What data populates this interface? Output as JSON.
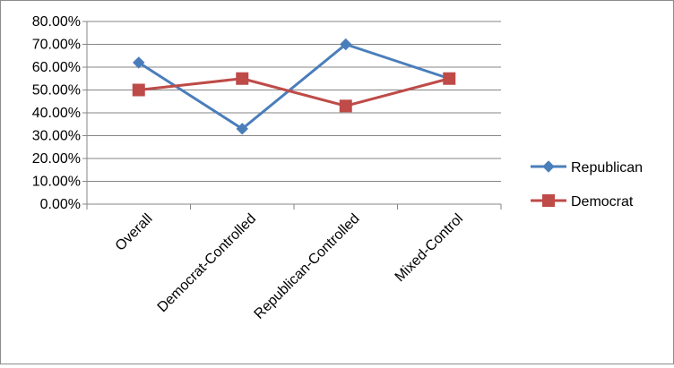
{
  "chart_data": {
    "type": "line",
    "categories": [
      "Overall",
      "Democrat-Controlled",
      "Republican-Controlled",
      "Mixed-Control"
    ],
    "series": [
      {
        "name": "Republican",
        "values": [
          0.62,
          0.33,
          0.7,
          0.55
        ],
        "color": "#4a7ebb",
        "marker": "diamond"
      },
      {
        "name": "Democrat",
        "values": [
          0.5,
          0.55,
          0.43,
          0.55
        ],
        "color": "#be4b48",
        "marker": "square"
      }
    ],
    "ylim": [
      0,
      0.8
    ],
    "yticks": [
      0,
      0.1,
      0.2,
      0.3,
      0.4,
      0.5,
      0.6,
      0.7,
      0.8
    ],
    "ytick_labels": [
      "0.00%",
      "10.00%",
      "20.00%",
      "30.00%",
      "40.00%",
      "50.00%",
      "60.00%",
      "70.00%",
      "80.00%"
    ],
    "grid": true,
    "legend_position": "right",
    "title": "",
    "xlabel": "",
    "ylabel": ""
  }
}
